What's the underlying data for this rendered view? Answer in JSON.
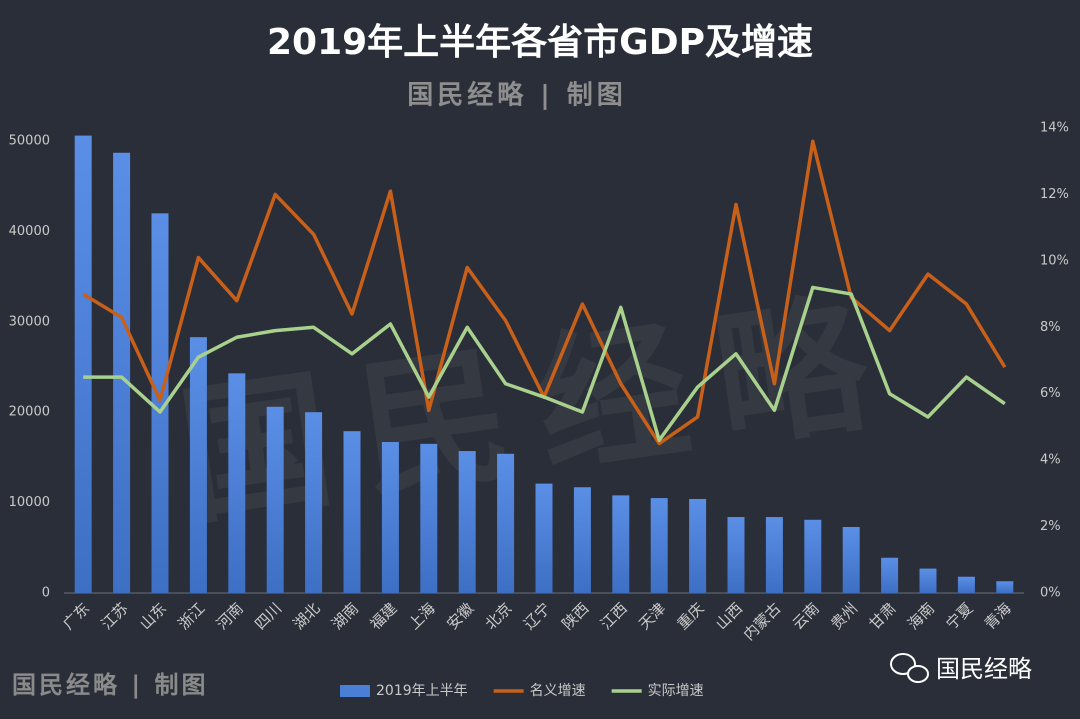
{
  "chart_data": {
    "type": "bar_line",
    "title": "2019年上半年各省市GDP及增速",
    "subtitle": "国民经略 | 制图",
    "annotations": [
      "国民经略",
      "国民经略 | 制图",
      "国民经略"
    ],
    "categories": [
      "广东",
      "江苏",
      "山东",
      "浙江",
      "河南",
      "四川",
      "湖北",
      "湖南",
      "福建",
      "上海",
      "安徽",
      "北京",
      "辽宁",
      "陕西",
      "江西",
      "天津",
      "重庆",
      "山西",
      "内蒙古",
      "云南",
      "贵州",
      "甘肃",
      "海南",
      "宁夏",
      "青海"
    ],
    "series": [
      {
        "name": "2019年上半年",
        "type": "bar",
        "color": "#4a7fd6",
        "values": [
          50600,
          48700,
          42000,
          28300,
          24300,
          20600,
          20000,
          17900,
          16700,
          16500,
          15700,
          15400,
          12100,
          11700,
          10800,
          10500,
          10400,
          8400,
          8400,
          8100,
          7300,
          3900,
          2700,
          1800,
          1300
        ]
      },
      {
        "name": "名义增速",
        "type": "line",
        "axis": "y2",
        "color": "#c8601a",
        "values": [
          9.0,
          8.3,
          5.8,
          10.1,
          8.8,
          12.0,
          10.8,
          8.4,
          12.1,
          5.5,
          9.8,
          8.2,
          5.9,
          8.7,
          6.3,
          4.5,
          5.3,
          11.7,
          6.3,
          13.6,
          8.9,
          7.9,
          9.6,
          8.7,
          6.8
        ]
      },
      {
        "name": "实际增速",
        "type": "line",
        "axis": "y2",
        "color": "#a9d18e",
        "values": [
          6.5,
          6.5,
          5.45,
          7.1,
          7.7,
          7.9,
          8.0,
          7.2,
          8.1,
          5.9,
          8.0,
          6.3,
          5.9,
          5.45,
          8.6,
          4.6,
          6.2,
          7.2,
          5.5,
          9.2,
          9.0,
          6.0,
          5.3,
          6.5,
          5.7
        ]
      }
    ],
    "ylim": [
      0,
      51440
    ],
    "yticks": [
      0,
      10000,
      20000,
      30000,
      40000,
      50000
    ],
    "y2lim": [
      0,
      14
    ],
    "y2ticks": [
      {
        "value": 0,
        "label": "0%"
      },
      {
        "value": 2,
        "label": "2%"
      },
      {
        "value": 4,
        "label": "4%"
      },
      {
        "value": 6,
        "label": "6%"
      },
      {
        "value": 8,
        "label": "8%"
      },
      {
        "value": 10,
        "label": "10%"
      },
      {
        "value": 12,
        "label": "12%"
      },
      {
        "value": 14,
        "label": "14%"
      }
    ],
    "legend": "bottom"
  }
}
